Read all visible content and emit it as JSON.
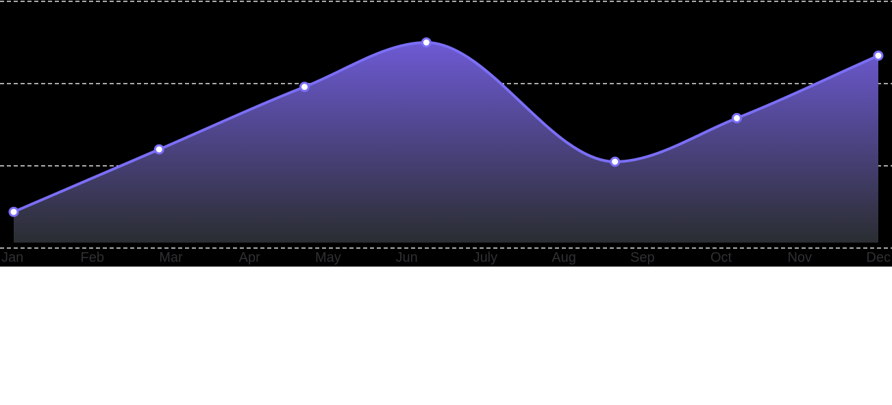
{
  "chart_data": {
    "type": "area",
    "categories": [
      "Jan",
      "Feb",
      "Mar",
      "Apr",
      "May",
      "Jun",
      "July",
      "Aug",
      "Sep",
      "Oct",
      "Nov",
      "Dec"
    ],
    "series": [
      {
        "points": [
          {
            "x": 0.0,
            "y": 44
          },
          {
            "x": 1.85,
            "y": 120
          },
          {
            "x": 3.7,
            "y": 196
          },
          {
            "x": 5.25,
            "y": 250
          },
          {
            "x": 7.65,
            "y": 105
          },
          {
            "x": 9.2,
            "y": 158
          },
          {
            "x": 11.0,
            "y": 234
          }
        ]
      }
    ],
    "ylim": [
      0,
      300
    ],
    "grid": true,
    "colors": {
      "background": "#000000",
      "line": "#7b6ef6",
      "fill_top": "#6d5ad4",
      "fill_bottom": "#2a2d31",
      "grid": "#e6e6e6",
      "marker_fill": "#ffffff",
      "tick_label": "#2f3033"
    }
  }
}
